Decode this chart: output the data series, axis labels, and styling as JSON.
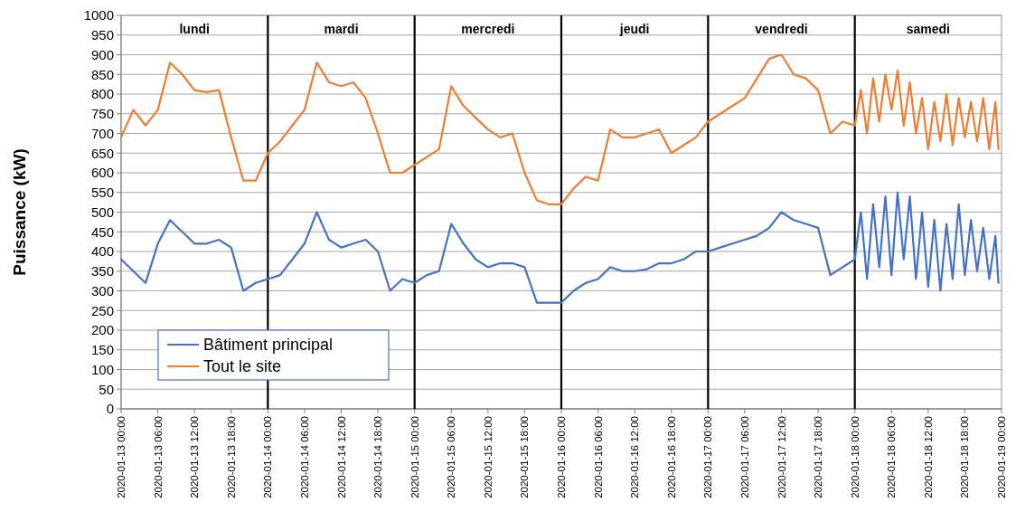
{
  "chart_data": {
    "type": "line",
    "ylabel": "Puissance (kW)",
    "x": [
      "2020-01-13T00:00",
      "2020-01-13T02:00",
      "2020-01-13T04:00",
      "2020-01-13T06:00",
      "2020-01-13T08:00",
      "2020-01-13T10:00",
      "2020-01-13T12:00",
      "2020-01-13T14:00",
      "2020-01-13T16:00",
      "2020-01-13T18:00",
      "2020-01-13T20:00",
      "2020-01-13T22:00",
      "2020-01-14T00:00",
      "2020-01-14T02:00",
      "2020-01-14T04:00",
      "2020-01-14T06:00",
      "2020-01-14T08:00",
      "2020-01-14T10:00",
      "2020-01-14T12:00",
      "2020-01-14T14:00",
      "2020-01-14T16:00",
      "2020-01-14T18:00",
      "2020-01-14T20:00",
      "2020-01-14T22:00",
      "2020-01-15T00:00",
      "2020-01-15T02:00",
      "2020-01-15T04:00",
      "2020-01-15T06:00",
      "2020-01-15T08:00",
      "2020-01-15T10:00",
      "2020-01-15T12:00",
      "2020-01-15T14:00",
      "2020-01-15T16:00",
      "2020-01-15T18:00",
      "2020-01-15T20:00",
      "2020-01-15T22:00",
      "2020-01-16T00:00",
      "2020-01-16T02:00",
      "2020-01-16T04:00",
      "2020-01-16T06:00",
      "2020-01-16T08:00",
      "2020-01-16T10:00",
      "2020-01-16T12:00",
      "2020-01-16T14:00",
      "2020-01-16T16:00",
      "2020-01-16T18:00",
      "2020-01-16T20:00",
      "2020-01-16T22:00",
      "2020-01-17T00:00",
      "2020-01-17T02:00",
      "2020-01-17T04:00",
      "2020-01-17T06:00",
      "2020-01-17T08:00",
      "2020-01-17T10:00",
      "2020-01-17T12:00",
      "2020-01-17T14:00",
      "2020-01-17T16:00",
      "2020-01-17T18:00",
      "2020-01-17T20:00",
      "2020-01-17T22:00",
      "2020-01-18T00:00",
      "2020-01-18T01:00",
      "2020-01-18T02:00",
      "2020-01-18T03:00",
      "2020-01-18T04:00",
      "2020-01-18T05:00",
      "2020-01-18T06:00",
      "2020-01-18T07:00",
      "2020-01-18T08:00",
      "2020-01-18T09:00",
      "2020-01-18T10:00",
      "2020-01-18T11:00",
      "2020-01-18T12:00",
      "2020-01-18T13:00",
      "2020-01-18T14:00",
      "2020-01-18T15:00",
      "2020-01-18T16:00",
      "2020-01-18T17:00",
      "2020-01-18T18:00",
      "2020-01-18T19:00",
      "2020-01-18T20:00",
      "2020-01-18T21:00",
      "2020-01-18T22:00",
      "2020-01-18T23:00",
      "2020-01-18T23:30"
    ],
    "series": [
      {
        "name": "Bâtiment principal",
        "color": "#4472c4",
        "values": [
          380,
          350,
          320,
          420,
          480,
          450,
          420,
          420,
          430,
          410,
          300,
          320,
          330,
          340,
          380,
          420,
          500,
          430,
          410,
          420,
          430,
          400,
          300,
          330,
          320,
          340,
          350,
          470,
          420,
          380,
          360,
          370,
          370,
          360,
          270,
          270,
          270,
          300,
          320,
          330,
          360,
          350,
          350,
          355,
          370,
          370,
          380,
          400,
          400,
          410,
          420,
          430,
          440,
          460,
          500,
          480,
          470,
          460,
          340,
          360,
          380,
          500,
          330,
          520,
          360,
          540,
          340,
          550,
          380,
          540,
          330,
          500,
          310,
          480,
          300,
          470,
          330,
          520,
          340,
          480,
          350,
          460,
          330,
          440,
          320
        ]
      },
      {
        "name": "Tout le site",
        "color": "#ed7d31",
        "values": [
          690,
          760,
          720,
          760,
          880,
          850,
          810,
          805,
          810,
          690,
          580,
          580,
          650,
          680,
          720,
          760,
          880,
          830,
          820,
          830,
          790,
          700,
          600,
          600,
          620,
          640,
          660,
          820,
          770,
          740,
          710,
          690,
          700,
          600,
          530,
          520,
          520,
          560,
          590,
          580,
          710,
          690,
          690,
          700,
          710,
          650,
          670,
          690,
          730,
          750,
          770,
          790,
          840,
          890,
          900,
          850,
          840,
          810,
          700,
          730,
          720,
          810,
          700,
          840,
          730,
          850,
          760,
          860,
          720,
          830,
          700,
          790,
          660,
          780,
          680,
          800,
          670,
          790,
          690,
          780,
          680,
          790,
          660,
          780,
          660
        ]
      }
    ],
    "xlim": [
      "2020-01-13T00:00",
      "2020-01-19T00:00"
    ],
    "xticks": [
      {
        "value": "2020-01-13T00:00",
        "label": "2020-01-13 00:00"
      },
      {
        "value": "2020-01-13T06:00",
        "label": "2020-01-13 06:00"
      },
      {
        "value": "2020-01-13T12:00",
        "label": "2020-01-13 12:00"
      },
      {
        "value": "2020-01-13T18:00",
        "label": "2020-01-13 18:00"
      },
      {
        "value": "2020-01-14T00:00",
        "label": "2020-01-14 00:00"
      },
      {
        "value": "2020-01-14T06:00",
        "label": "2020-01-14 06:00"
      },
      {
        "value": "2020-01-14T12:00",
        "label": "2020-01-14 12:00"
      },
      {
        "value": "2020-01-14T18:00",
        "label": "2020-01-14 18:00"
      },
      {
        "value": "2020-01-15T00:00",
        "label": "2020-01-15 00:00"
      },
      {
        "value": "2020-01-15T06:00",
        "label": "2020-01-15 06:00"
      },
      {
        "value": "2020-01-15T12:00",
        "label": "2020-01-15 12:00"
      },
      {
        "value": "2020-01-15T18:00",
        "label": "2020-01-15 18:00"
      },
      {
        "value": "2020-01-16T00:00",
        "label": "2020-01-16 00:00"
      },
      {
        "value": "2020-01-16T06:00",
        "label": "2020-01-16 06:00"
      },
      {
        "value": "2020-01-16T12:00",
        "label": "2020-01-16 12:00"
      },
      {
        "value": "2020-01-16T18:00",
        "label": "2020-01-16 18:00"
      },
      {
        "value": "2020-01-17T00:00",
        "label": "2020-01-17 00:00"
      },
      {
        "value": "2020-01-17T06:00",
        "label": "2020-01-17 06:00"
      },
      {
        "value": "2020-01-17T12:00",
        "label": "2020-01-17 12:00"
      },
      {
        "value": "2020-01-17T18:00",
        "label": "2020-01-17 18:00"
      },
      {
        "value": "2020-01-18T00:00",
        "label": "2020-01-18 00:00"
      },
      {
        "value": "2020-01-18T06:00",
        "label": "2020-01-18 06:00"
      },
      {
        "value": "2020-01-18T12:00",
        "label": "2020-01-18 12:00"
      },
      {
        "value": "2020-01-18T18:00",
        "label": "2020-01-18 18:00"
      },
      {
        "value": "2020-01-19T00:00",
        "label": "2020-01-19 00:00"
      }
    ],
    "ylim": [
      0,
      1000
    ],
    "yticks": [
      0,
      50,
      100,
      150,
      200,
      250,
      300,
      350,
      400,
      450,
      500,
      550,
      600,
      650,
      700,
      750,
      800,
      850,
      900,
      950,
      1000
    ],
    "grid": "y",
    "legend": "bottom left",
    "line_style": "solid",
    "ref_lines": [
      {
        "axis": "x",
        "value": "2020-01-14T00:00",
        "color": "#000000"
      },
      {
        "axis": "x",
        "value": "2020-01-15T00:00",
        "color": "#000000"
      },
      {
        "axis": "x",
        "value": "2020-01-16T00:00",
        "color": "#000000"
      },
      {
        "axis": "x",
        "value": "2020-01-17T00:00",
        "color": "#000000"
      },
      {
        "axis": "x",
        "value": "2020-01-18T00:00",
        "color": "#000000"
      }
    ],
    "annotations": [
      "lundi",
      "mardi",
      "mercredi",
      "jeudi",
      "vendredi",
      "samedi"
    ]
  }
}
